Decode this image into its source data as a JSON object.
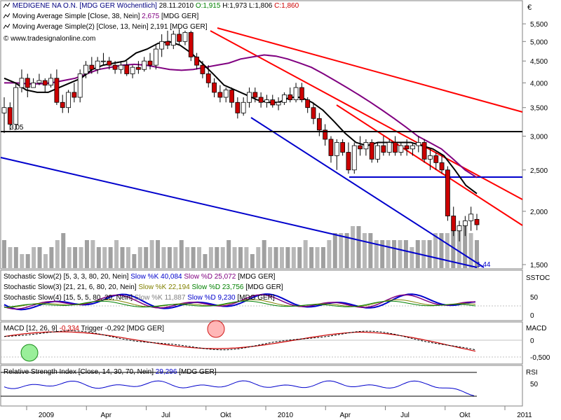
{
  "header": {
    "title": "MEDIGENE NA O.N. [MDG GER  Wöchentlich]",
    "date": "28.11.2010",
    "open_label": "O:",
    "open": "1,915",
    "high_label": "H:",
    "high": "1,973",
    "low_label": "L:",
    "low": "1,806",
    "close_label": "C:",
    "close": "1,860",
    "currency": "€"
  },
  "indicators_main": [
    {
      "label": "Moving Average Simple [Close, 38, Nein]",
      "value": "2,675",
      "suffix": "[MDG GER]",
      "color": "#800080"
    },
    {
      "label": "Moving Average Simple(2) [Close, 13, Nein]",
      "value": "2,191",
      "suffix": "[MDG GER]",
      "color": "#000000"
    }
  ],
  "watermark": "© www.tradesignalonline.com",
  "low_label": "3,05",
  "low_label2": "1,44",
  "stoch_panel": {
    "axis_label": "SSTOC",
    "lines": [
      {
        "label": "Stochastic Slow(2) [5, 3, 3, 80, 20, Nein]",
        "k_label": "Slow %K",
        "k": "40,084",
        "d_label": "Slow %D",
        "d": "25,072",
        "suffix": "[MDG GER]"
      },
      {
        "label": "Stochastic Slow(3) [21, 21, 6, 80, 20, Nein]",
        "k_label": "Slow %K",
        "k": "22,194",
        "d_label": "Slow %D",
        "d": "23,756",
        "suffix": "[MDG GER]"
      },
      {
        "label": "Stochastic Slow(4) [15, 5, 5, 80, 20, Nein]",
        "k_label": "Slow %K",
        "k": "11,887",
        "d_label": "Slow %D",
        "d": "9,230",
        "suffix": "[MDG GER]"
      }
    ],
    "ticks": [
      "50",
      "0"
    ]
  },
  "macd_panel": {
    "axis_label": "MACD",
    "label": "MACD [12, 26, 9]",
    "value": "-0,334",
    "trigger_label": "Trigger",
    "trigger": "-0,292",
    "suffix": "[MDG GER]",
    "ticks": [
      "0",
      "-0,500"
    ]
  },
  "rsi_panel": {
    "axis_label": "RSI",
    "label": "Relative Strength Index [Close, 14, 30, 70, Nein]",
    "value": "29,296",
    "suffix": "[MDG GER]",
    "ticks": [
      "50"
    ]
  },
  "colors": {
    "up": "#ffffff",
    "down": "#cc0000",
    "ma38": "#800080",
    "ma13": "#000000",
    "trend_red": "#ff0000",
    "trend_blue": "#0000cc",
    "volume": "#808080"
  },
  "chart_data": {
    "type": "candlestick",
    "period": "weekly",
    "yscale": "log",
    "y_ticks": [
      "5,500",
      "5,000",
      "4,500",
      "4,000",
      "3,500",
      "3,000",
      "2,500",
      "2,000",
      "1,500"
    ],
    "y_tick_values": [
      5.5,
      5.0,
      4.5,
      4.0,
      3.5,
      3.0,
      2.5,
      2.0,
      1.5
    ],
    "ylim": [
      1.5,
      5.8
    ],
    "x_ticks": [
      "2009",
      "Apr",
      "Jul",
      "Okt",
      "2010",
      "Apr",
      "Jul",
      "Okt",
      "2011"
    ],
    "x_tick_weeks": [
      0,
      13,
      26,
      39,
      52,
      65,
      78,
      91,
      104
    ],
    "candles": [
      {
        "o": 3.4,
        "h": 3.7,
        "l": 3.05,
        "c": 3.5
      },
      {
        "o": 3.5,
        "h": 3.6,
        "l": 3.1,
        "c": 3.2
      },
      {
        "o": 3.2,
        "h": 4.0,
        "l": 3.1,
        "c": 3.9
      },
      {
        "o": 3.9,
        "h": 4.3,
        "l": 3.8,
        "c": 4.1
      },
      {
        "o": 4.1,
        "h": 4.2,
        "l": 3.7,
        "c": 3.9
      },
      {
        "o": 3.9,
        "h": 4.1,
        "l": 3.9,
        "c": 4.0
      },
      {
        "o": 4.0,
        "h": 4.2,
        "l": 3.95,
        "c": 4.05
      },
      {
        "o": 4.05,
        "h": 4.1,
        "l": 3.8,
        "c": 3.95
      },
      {
        "o": 3.95,
        "h": 4.2,
        "l": 3.9,
        "c": 4.1
      },
      {
        "o": 4.1,
        "h": 4.3,
        "l": 3.55,
        "c": 3.6
      },
      {
        "o": 3.6,
        "h": 3.75,
        "l": 3.4,
        "c": 3.5
      },
      {
        "o": 3.5,
        "h": 3.85,
        "l": 3.4,
        "c": 3.8
      },
      {
        "o": 3.8,
        "h": 4.0,
        "l": 3.6,
        "c": 3.7
      },
      {
        "o": 3.7,
        "h": 4.3,
        "l": 3.6,
        "c": 4.2
      },
      {
        "o": 4.2,
        "h": 4.5,
        "l": 4.1,
        "c": 4.4
      },
      {
        "o": 4.4,
        "h": 4.6,
        "l": 4.2,
        "c": 4.3
      },
      {
        "o": 4.3,
        "h": 4.6,
        "l": 4.2,
        "c": 4.5
      },
      {
        "o": 4.5,
        "h": 4.7,
        "l": 4.4,
        "c": 4.5
      },
      {
        "o": 4.5,
        "h": 4.6,
        "l": 4.3,
        "c": 4.4
      },
      {
        "o": 4.4,
        "h": 4.5,
        "l": 4.2,
        "c": 4.3
      },
      {
        "o": 4.3,
        "h": 4.5,
        "l": 4.2,
        "c": 4.4
      },
      {
        "o": 4.4,
        "h": 4.5,
        "l": 4.15,
        "c": 4.2
      },
      {
        "o": 4.2,
        "h": 4.4,
        "l": 4.1,
        "c": 4.35
      },
      {
        "o": 4.35,
        "h": 4.5,
        "l": 4.2,
        "c": 4.3
      },
      {
        "o": 4.3,
        "h": 4.6,
        "l": 4.25,
        "c": 4.5
      },
      {
        "o": 4.5,
        "h": 4.7,
        "l": 4.3,
        "c": 4.4
      },
      {
        "o": 4.4,
        "h": 4.9,
        "l": 4.3,
        "c": 4.8
      },
      {
        "o": 4.8,
        "h": 5.2,
        "l": 4.6,
        "c": 5.0
      },
      {
        "o": 5.0,
        "h": 5.3,
        "l": 4.8,
        "c": 4.9
      },
      {
        "o": 4.9,
        "h": 5.3,
        "l": 4.8,
        "c": 5.2
      },
      {
        "o": 5.2,
        "h": 5.35,
        "l": 4.9,
        "c": 5.0
      },
      {
        "o": 5.0,
        "h": 5.3,
        "l": 4.9,
        "c": 5.25
      },
      {
        "o": 5.25,
        "h": 5.3,
        "l": 4.5,
        "c": 4.6
      },
      {
        "o": 4.6,
        "h": 4.7,
        "l": 4.3,
        "c": 4.4
      },
      {
        "o": 4.4,
        "h": 4.5,
        "l": 4.1,
        "c": 4.2
      },
      {
        "o": 4.2,
        "h": 4.4,
        "l": 3.9,
        "c": 4.0
      },
      {
        "o": 4.0,
        "h": 4.1,
        "l": 3.7,
        "c": 3.8
      },
      {
        "o": 3.8,
        "h": 3.95,
        "l": 3.6,
        "c": 3.7
      },
      {
        "o": 3.7,
        "h": 3.9,
        "l": 3.6,
        "c": 3.85
      },
      {
        "o": 3.85,
        "h": 3.9,
        "l": 3.5,
        "c": 3.6
      },
      {
        "o": 3.6,
        "h": 3.7,
        "l": 3.3,
        "c": 3.4
      },
      {
        "o": 3.4,
        "h": 3.7,
        "l": 3.35,
        "c": 3.6
      },
      {
        "o": 3.6,
        "h": 3.9,
        "l": 3.5,
        "c": 3.8
      },
      {
        "o": 3.8,
        "h": 3.9,
        "l": 3.6,
        "c": 3.7
      },
      {
        "o": 3.7,
        "h": 3.8,
        "l": 3.5,
        "c": 3.6
      },
      {
        "o": 3.6,
        "h": 3.75,
        "l": 3.5,
        "c": 3.65
      },
      {
        "o": 3.65,
        "h": 3.75,
        "l": 3.5,
        "c": 3.55
      },
      {
        "o": 3.55,
        "h": 3.7,
        "l": 3.45,
        "c": 3.6
      },
      {
        "o": 3.6,
        "h": 3.8,
        "l": 3.55,
        "c": 3.75
      },
      {
        "o": 3.75,
        "h": 3.9,
        "l": 3.6,
        "c": 3.65
      },
      {
        "o": 3.65,
        "h": 4.0,
        "l": 3.6,
        "c": 3.9
      },
      {
        "o": 3.9,
        "h": 4.0,
        "l": 3.6,
        "c": 3.65
      },
      {
        "o": 3.65,
        "h": 3.7,
        "l": 3.4,
        "c": 3.5
      },
      {
        "o": 3.5,
        "h": 3.6,
        "l": 3.2,
        "c": 3.3
      },
      {
        "o": 3.3,
        "h": 3.4,
        "l": 3.0,
        "c": 3.1
      },
      {
        "o": 3.1,
        "h": 3.2,
        "l": 2.85,
        "c": 2.95
      },
      {
        "o": 2.95,
        "h": 3.0,
        "l": 2.6,
        "c": 2.7
      },
      {
        "o": 2.7,
        "h": 2.95,
        "l": 2.5,
        "c": 2.9
      },
      {
        "o": 2.9,
        "h": 2.95,
        "l": 2.7,
        "c": 2.75
      },
      {
        "o": 2.75,
        "h": 2.9,
        "l": 2.45,
        "c": 2.5
      },
      {
        "o": 2.5,
        "h": 2.9,
        "l": 2.45,
        "c": 2.85
      },
      {
        "o": 2.85,
        "h": 3.0,
        "l": 2.7,
        "c": 2.8
      },
      {
        "o": 2.8,
        "h": 2.95,
        "l": 2.7,
        "c": 2.9
      },
      {
        "o": 2.9,
        "h": 2.95,
        "l": 2.6,
        "c": 2.65
      },
      {
        "o": 2.65,
        "h": 2.9,
        "l": 2.6,
        "c": 2.85
      },
      {
        "o": 2.85,
        "h": 3.0,
        "l": 2.7,
        "c": 2.75
      },
      {
        "o": 2.75,
        "h": 2.95,
        "l": 2.7,
        "c": 2.9
      },
      {
        "o": 2.9,
        "h": 3.0,
        "l": 2.7,
        "c": 2.75
      },
      {
        "o": 2.75,
        "h": 2.9,
        "l": 2.7,
        "c": 2.85
      },
      {
        "o": 2.85,
        "h": 2.95,
        "l": 2.7,
        "c": 2.8
      },
      {
        "o": 2.8,
        "h": 2.9,
        "l": 2.7,
        "c": 2.85
      },
      {
        "o": 2.85,
        "h": 3.0,
        "l": 2.75,
        "c": 2.9
      },
      {
        "o": 2.9,
        "h": 2.95,
        "l": 2.6,
        "c": 2.65
      },
      {
        "o": 2.65,
        "h": 2.8,
        "l": 2.5,
        "c": 2.7
      },
      {
        "o": 2.7,
        "h": 2.75,
        "l": 2.5,
        "c": 2.6
      },
      {
        "o": 2.6,
        "h": 2.7,
        "l": 2.45,
        "c": 2.5
      },
      {
        "o": 2.5,
        "h": 2.55,
        "l": 1.9,
        "c": 1.95
      },
      {
        "o": 1.95,
        "h": 2.05,
        "l": 1.75,
        "c": 1.8
      },
      {
        "o": 1.8,
        "h": 1.9,
        "l": 1.7,
        "c": 1.85
      },
      {
        "o": 1.85,
        "h": 1.95,
        "l": 1.75,
        "c": 1.9
      },
      {
        "o": 1.9,
        "h": 2.05,
        "l": 1.8,
        "c": 1.97
      },
      {
        "o": 1.915,
        "h": 1.973,
        "l": 1.806,
        "c": 1.86
      }
    ],
    "ma38": [
      4.0,
      4.0,
      3.98,
      3.98,
      4.0,
      4.05,
      4.1,
      4.2,
      4.3,
      4.35,
      4.4,
      4.42,
      4.4,
      4.35,
      4.3,
      4.28,
      4.3,
      4.35,
      4.4,
      4.45,
      4.55,
      4.6,
      4.65,
      4.62,
      4.55,
      4.45,
      4.35,
      4.2,
      4.05,
      3.9,
      3.75,
      3.6,
      3.45,
      3.3,
      3.15,
      3.0,
      2.9,
      2.8,
      2.65,
      2.5,
      2.4
    ],
    "ma13": [
      4.1,
      4.0,
      3.85,
      3.8,
      3.8,
      3.9,
      4.0,
      4.1,
      4.3,
      4.4,
      4.45,
      4.5,
      4.7,
      4.8,
      4.95,
      5.0,
      4.9,
      4.7,
      4.45,
      4.2,
      3.95,
      3.85,
      3.75,
      3.65,
      3.6,
      3.6,
      3.7,
      3.7,
      3.6,
      3.45,
      3.25,
      3.05,
      2.9,
      2.85,
      2.9,
      2.9,
      2.9,
      2.9,
      2.85,
      2.8,
      2.7,
      2.5,
      2.3,
      2.2
    ],
    "volume": [
      4,
      3,
      3,
      2,
      2,
      3,
      3,
      2,
      3,
      4,
      5,
      3,
      3,
      3,
      4,
      4,
      3,
      3,
      3,
      4,
      3,
      3,
      2,
      3,
      3,
      4,
      4,
      3,
      3,
      3,
      4,
      3,
      3,
      3,
      2,
      3,
      3,
      3,
      4,
      3,
      3,
      3,
      2,
      3,
      4,
      3,
      3,
      3,
      3,
      3,
      3,
      4,
      3,
      3,
      3,
      4,
      5,
      5,
      5,
      6,
      6,
      5,
      5,
      4,
      4,
      4,
      4,
      4,
      4,
      3,
      4,
      4,
      4,
      5,
      5,
      5,
      7,
      6,
      6,
      5,
      4
    ]
  }
}
